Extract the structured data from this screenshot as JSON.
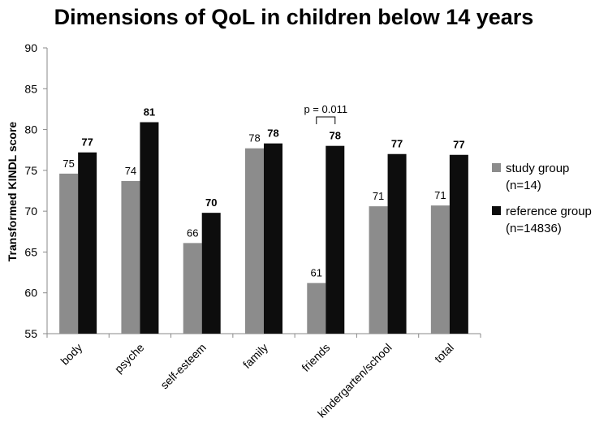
{
  "chart_data": {
    "type": "bar",
    "title": "Dimensions of QoL in children below 14 years",
    "xlabel": "",
    "ylabel": "Transformed KINDL score",
    "ylim": [
      55,
      90
    ],
    "yticks": [
      55,
      60,
      65,
      70,
      75,
      80,
      85,
      90
    ],
    "categories": [
      "body",
      "psyche",
      "self-esteem",
      "family",
      "friends",
      "kindergarten/school",
      "total"
    ],
    "series": [
      {
        "name": "study group",
        "name_line2": "(n=14)",
        "color": "#8c8c8c",
        "values": [
          74.6,
          73.7,
          66.1,
          77.7,
          61.2,
          70.6,
          70.7
        ],
        "labels": [
          "75",
          "74",
          "66",
          "78",
          "61",
          "71",
          "71"
        ]
      },
      {
        "name": "reference group",
        "name_line2": "(n=14836)",
        "color": "#0d0d0d",
        "values": [
          77.2,
          80.9,
          69.8,
          78.3,
          78.0,
          77.0,
          76.9
        ],
        "labels": [
          "77",
          "81",
          "70",
          "78",
          "78",
          "77",
          "77"
        ]
      }
    ],
    "annotation": {
      "text": "p = 0.011",
      "category": "friends"
    },
    "legend_position": "right",
    "grid": false
  }
}
